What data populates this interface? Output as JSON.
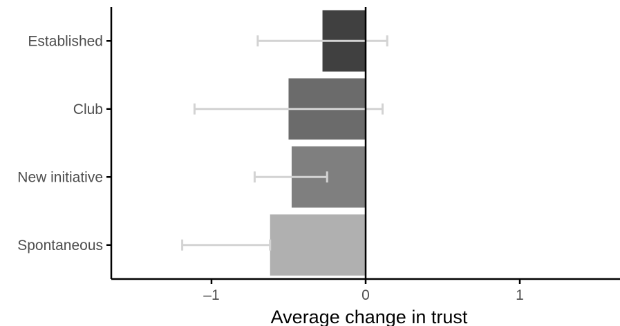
{
  "chart_data": {
    "type": "bar",
    "orientation": "horizontal",
    "title": "",
    "xlabel": "Average change in trust",
    "ylabel": "",
    "xlim": [
      -1.65,
      1.65
    ],
    "x_ticks": [
      -1,
      0,
      1
    ],
    "x_tick_labels": [
      "–1",
      "0",
      "1"
    ],
    "grid": false,
    "legend": "none",
    "categories": [
      "Established",
      "Club",
      "New initiative",
      "Spontaneous"
    ],
    "values": [
      -0.28,
      -0.5,
      -0.48,
      -0.62
    ],
    "error_low": [
      -0.7,
      -1.11,
      -0.72,
      -1.19
    ],
    "error_high": [
      0.14,
      0.11,
      -0.25,
      -0.62
    ],
    "bar_colors": [
      "#404040",
      "#6b6b6b",
      "#7f7f7f",
      "#b0b0b0"
    ],
    "error_bar_color": "#d3d3d3",
    "zero_line": true
  }
}
